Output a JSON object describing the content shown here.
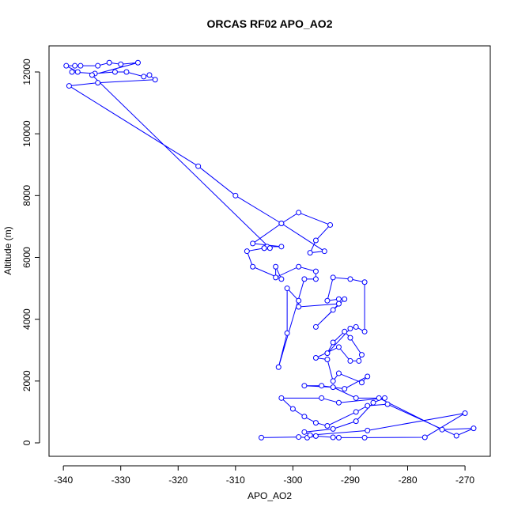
{
  "chart_data": {
    "type": "line",
    "title": "ORCAS RF02 APO_AO2",
    "x_label": "APO_AO2",
    "y_label": "Altitude (m)",
    "color": "#0000ff",
    "markers": true,
    "x": [
      -305.5,
      -299,
      -297.5,
      -296,
      -293,
      -292,
      -287.5,
      -277,
      -270,
      -287,
      -297,
      -298,
      -293,
      -289,
      -286,
      -284,
      -292,
      -295,
      -302,
      -300,
      -298,
      -296,
      -294,
      -289,
      -287,
      -283.5,
      -271.5,
      -268.5,
      -274,
      -285,
      -289,
      -293,
      -298,
      -295,
      -291,
      -287,
      -288,
      -292,
      -293,
      -294,
      -296,
      -292,
      -290,
      -288.5,
      -288,
      -290,
      -291,
      -293,
      -294,
      -290,
      -289,
      -287.5,
      -287.5,
      -290,
      -293,
      -294,
      -292,
      -291,
      -296,
      -293,
      -292,
      -299,
      -299,
      -301,
      -301,
      -302.5,
      -298,
      -296,
      -296,
      -299,
      -303,
      -303,
      -302,
      -307,
      -308,
      -305,
      -304.5,
      -302,
      -307,
      -302,
      -299,
      -293.5,
      -296,
      -297,
      -294.5,
      -302,
      -310,
      -316.5,
      -339,
      -334,
      -324,
      -325,
      -326,
      -329,
      -331,
      -334.5,
      -338.5,
      -337.5,
      -339.5,
      -338,
      -337,
      -334,
      -332,
      -330,
      -327,
      -335,
      -304,
      -305
    ],
    "values": [
      170,
      190,
      170,
      220,
      180,
      170,
      170,
      180,
      960,
      400,
      250,
      350,
      450,
      700,
      1300,
      1450,
      1300,
      1450,
      1450,
      1100,
      850,
      650,
      550,
      1000,
      1200,
      1250,
      230,
      470,
      430,
      1450,
      1450,
      1800,
      1850,
      1850,
      1750,
      2150,
      1950,
      2250,
      2000,
      2700,
      2750,
      3100,
      2650,
      2650,
      2850,
      3400,
      3600,
      3250,
      2900,
      3700,
      3750,
      3600,
      5200,
      5300,
      5350,
      4600,
      4650,
      4650,
      3750,
      4300,
      4500,
      4400,
      4600,
      5000,
      3550,
      2450,
      5300,
      5300,
      5550,
      5700,
      5350,
      5700,
      5300,
      5700,
      6200,
      6300,
      6350,
      6350,
      6450,
      7100,
      7450,
      7050,
      6550,
      6150,
      6200,
      7100,
      8000,
      8950,
      11550,
      11650,
      11750,
      11900,
      11850,
      12000,
      12000,
      11950,
      12000,
      12000,
      12200,
      12200,
      12200,
      12200,
      12300,
      12250,
      12300,
      11900,
      6300,
      6300
    ],
    "xlim": [
      -342.5,
      -265.6
    ],
    "ylim": [
      -435,
      12844
    ],
    "xticks": [
      -340,
      -330,
      -320,
      -310,
      -300,
      -290,
      -280,
      -270
    ],
    "yticks": [
      0,
      2000,
      4000,
      6000,
      8000,
      10000,
      12000
    ]
  }
}
